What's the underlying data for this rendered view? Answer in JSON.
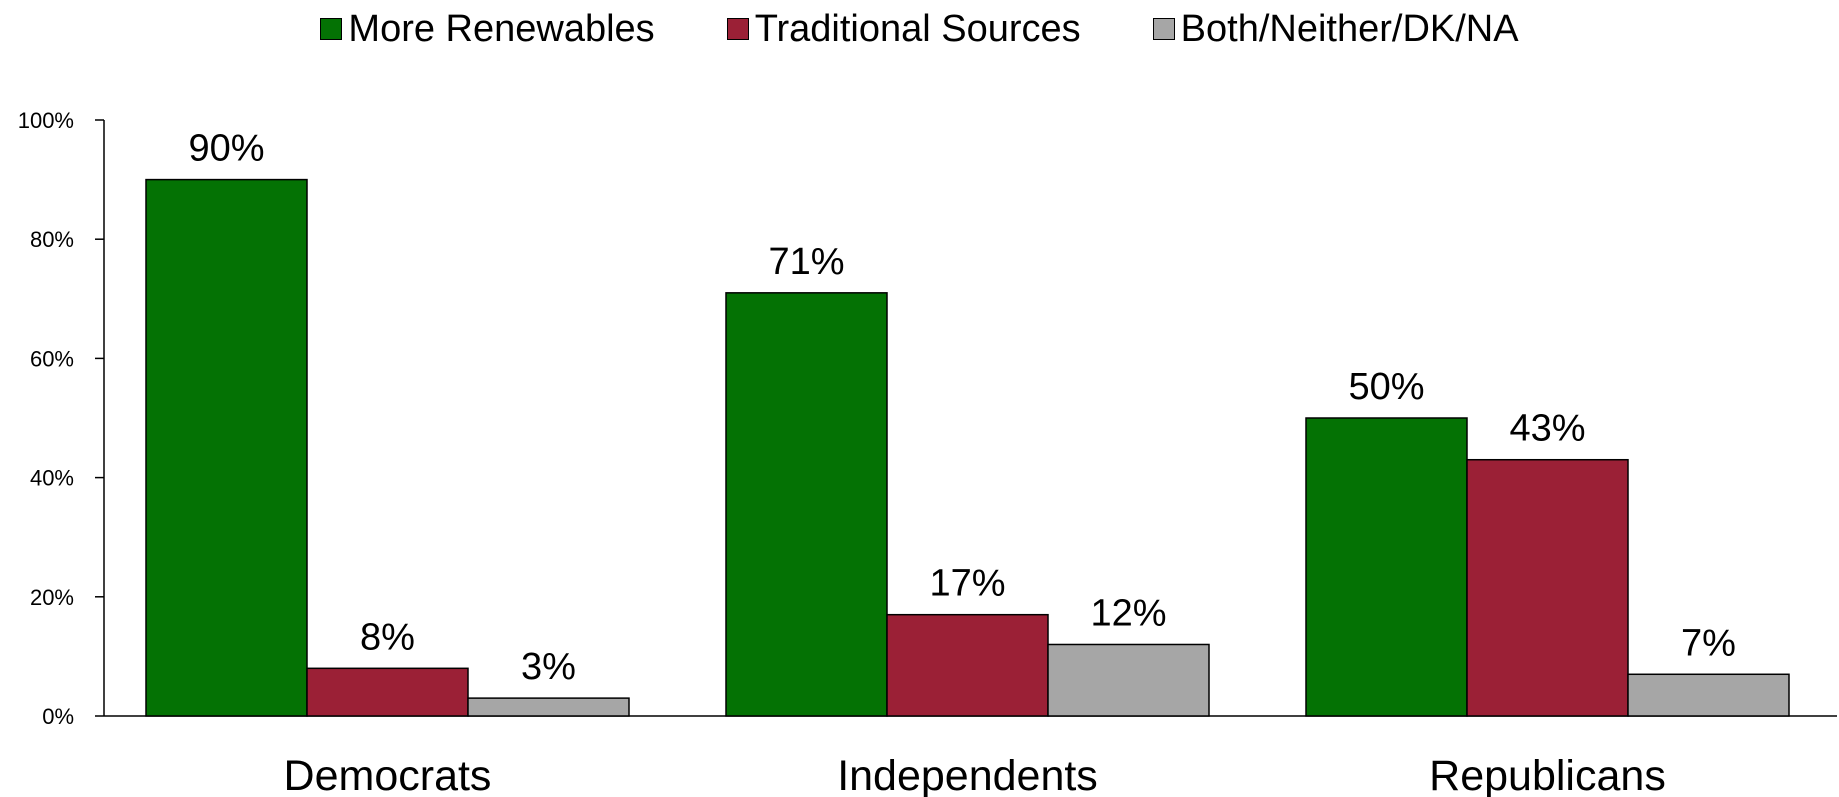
{
  "chart_data": {
    "type": "bar",
    "title": "",
    "xlabel": "",
    "ylabel": "",
    "categories": [
      "Democrats",
      "Independents",
      "Republicans"
    ],
    "series": [
      {
        "name": "More Renewables",
        "values": [
          90,
          71,
          50
        ],
        "color": "#047204",
        "data_labels": [
          "90%",
          "71%",
          "50%"
        ]
      },
      {
        "name": "Traditional Sources",
        "values": [
          8,
          17,
          43
        ],
        "color": "#9B2036",
        "data_labels": [
          "8%",
          "17%",
          "43%"
        ]
      },
      {
        "name": "Both/Neither/DK/NA",
        "values": [
          3,
          12,
          7
        ],
        "color": "#A6A6A6",
        "data_labels": [
          "3%",
          "12%",
          "7%"
        ]
      }
    ],
    "ylim": [
      0,
      100
    ],
    "y_ticks": [
      0,
      20,
      40,
      60,
      80,
      100
    ],
    "y_tick_labels": [
      "0%",
      "20%",
      "40%",
      "60%",
      "80%",
      "100%"
    ],
    "grid": false,
    "legend_position": "top-center"
  }
}
